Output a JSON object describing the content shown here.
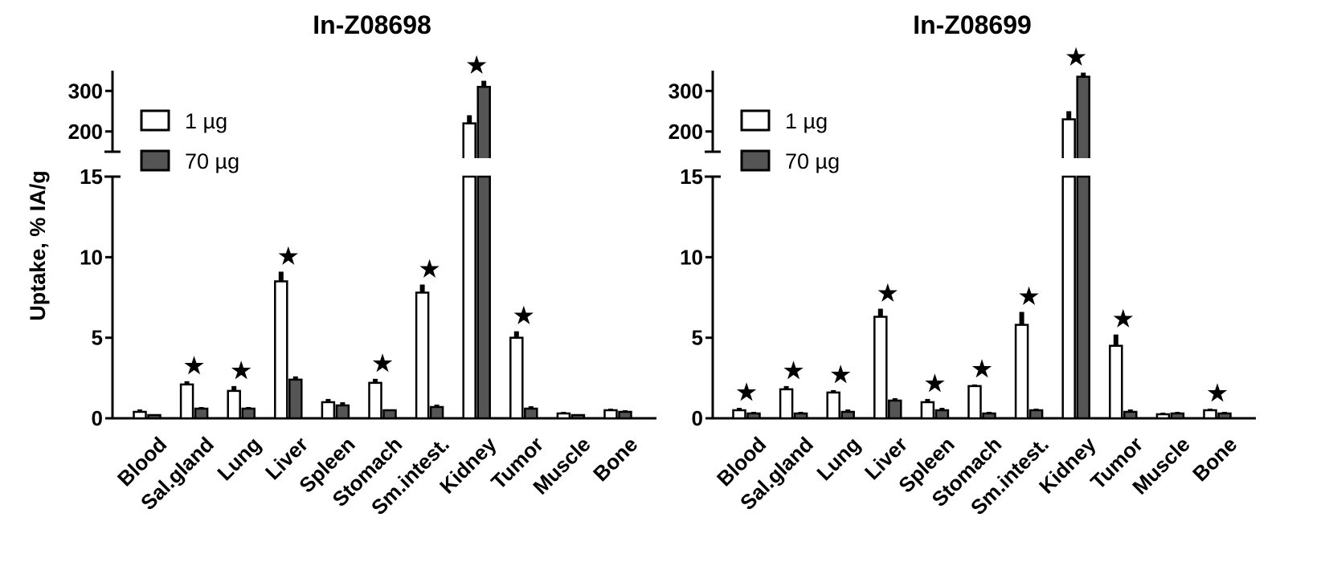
{
  "ylabel": "Uptake, % IA/g",
  "star_symbol": "★",
  "colors": {
    "open": "#ffffff",
    "filled": "#555555",
    "axis": "#000000"
  },
  "legend_entries": [
    "1 µg",
    "70 µg"
  ],
  "chart_data": [
    {
      "type": "bar",
      "title": "In-Z08698",
      "ylabel": "Uptake, % IA/g",
      "y_axis_break": true,
      "lower_ylim": [
        0,
        15
      ],
      "lower_ticks": [
        "0",
        "5",
        "10",
        "15"
      ],
      "upper_ylim": [
        150,
        350
      ],
      "upper_ticks": [
        "200",
        "300"
      ],
      "legend_position": "upper-left",
      "categories": [
        "Blood",
        "Sal.gland",
        "Lung",
        "Liver",
        "Spleen",
        "Stomach",
        "Sm.intest.",
        "Kidney",
        "Tumor",
        "Muscle",
        "Bone"
      ],
      "series": [
        {
          "name": "1 µg",
          "fill": "open",
          "values": [
            0.4,
            2.1,
            1.7,
            8.5,
            1.0,
            2.2,
            7.8,
            220,
            5.0,
            0.3,
            0.5
          ],
          "errors": [
            0.15,
            0.2,
            0.3,
            0.6,
            0.2,
            0.25,
            0.5,
            20,
            0.4,
            0.1,
            0.1
          ]
        },
        {
          "name": "70 µg",
          "fill": "filled",
          "values": [
            0.2,
            0.6,
            0.6,
            2.4,
            0.8,
            0.5,
            0.7,
            310,
            0.6,
            0.2,
            0.4
          ],
          "errors": [
            0.05,
            0.1,
            0.1,
            0.2,
            0.2,
            0.05,
            0.15,
            15,
            0.15,
            0.05,
            0.1
          ]
        }
      ],
      "significance_stars": [
        "Sal.gland",
        "Lung",
        "Liver",
        "Stomach",
        "Sm.intest.",
        "Kidney",
        "Tumor"
      ]
    },
    {
      "type": "bar",
      "title": "In-Z08699",
      "ylabel": "",
      "y_axis_break": true,
      "lower_ylim": [
        0,
        15
      ],
      "lower_ticks": [
        "0",
        "5",
        "10",
        "15"
      ],
      "upper_ylim": [
        150,
        350
      ],
      "upper_ticks": [
        "200",
        "300"
      ],
      "legend_position": "upper-left",
      "categories": [
        "Blood",
        "Sal.gland",
        "Lung",
        "Liver",
        "Spleen",
        "Stomach",
        "Sm.intest.",
        "Kidney",
        "Tumor",
        "Muscle",
        "Bone"
      ],
      "series": [
        {
          "name": "1 µg",
          "fill": "open",
          "values": [
            0.5,
            1.8,
            1.6,
            6.3,
            1.0,
            2.0,
            5.8,
            230,
            4.5,
            0.25,
            0.5
          ],
          "errors": [
            0.15,
            0.2,
            0.15,
            0.5,
            0.2,
            0.1,
            0.8,
            20,
            0.7,
            0.1,
            0.1
          ]
        },
        {
          "name": "70 µg",
          "fill": "filled",
          "values": [
            0.3,
            0.3,
            0.4,
            1.1,
            0.5,
            0.3,
            0.5,
            335,
            0.4,
            0.3,
            0.3
          ],
          "errors": [
            0.1,
            0.1,
            0.15,
            0.15,
            0.15,
            0.1,
            0.1,
            10,
            0.15,
            0.1,
            0.1
          ]
        }
      ],
      "significance_stars": [
        "Blood",
        "Sal.gland",
        "Lung",
        "Liver",
        "Spleen",
        "Stomach",
        "Sm.intest.",
        "Kidney",
        "Tumor",
        "Bone"
      ]
    }
  ]
}
